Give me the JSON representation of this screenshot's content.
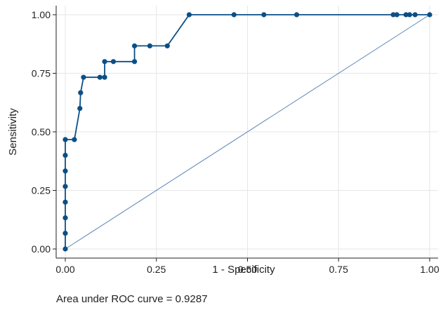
{
  "chart_data": {
    "type": "line",
    "xlabel": "1 - Specificity",
    "ylabel": "Sensitivity",
    "xlim": [
      0,
      1
    ],
    "ylim": [
      0,
      1
    ],
    "x_ticks": [
      "0.00",
      "0.25",
      "0.50",
      "0.75",
      "1.00"
    ],
    "y_ticks": [
      "0.00",
      "0.25",
      "0.50",
      "0.75",
      "1.00"
    ],
    "grid": true,
    "legend": "none",
    "colors": {
      "roc": "#0b4f86",
      "reference": "#5b86b6",
      "grid": "#e6e6e6"
    },
    "series": [
      {
        "values": [
          [
            0.0,
            0.0
          ],
          [
            0.0,
            0.067
          ],
          [
            0.0,
            0.133
          ],
          [
            0.0,
            0.2
          ],
          [
            0.0,
            0.267
          ],
          [
            0.0,
            0.333
          ],
          [
            0.0,
            0.4
          ],
          [
            0.0,
            0.467
          ],
          [
            0.025,
            0.467
          ],
          [
            0.04,
            0.6
          ],
          [
            0.042,
            0.667
          ],
          [
            0.05,
            0.733
          ],
          [
            0.095,
            0.733
          ],
          [
            0.108,
            0.733
          ],
          [
            0.108,
            0.8
          ],
          [
            0.132,
            0.8
          ],
          [
            0.19,
            0.8
          ],
          [
            0.19,
            0.867
          ],
          [
            0.232,
            0.867
          ],
          [
            0.28,
            0.867
          ],
          [
            0.34,
            1.0
          ],
          [
            0.463,
            1.0
          ],
          [
            0.545,
            1.0
          ],
          [
            0.635,
            1.0
          ],
          [
            0.9,
            1.0
          ],
          [
            0.91,
            1.0
          ],
          [
            0.935,
            1.0
          ],
          [
            0.945,
            1.0
          ],
          [
            0.96,
            1.0
          ],
          [
            1.0,
            1.0
          ]
        ]
      },
      {
        "values": [
          [
            0,
            0
          ],
          [
            1,
            1
          ]
        ]
      }
    ],
    "annotation": "Area under ROC curve = 0.9287"
  }
}
